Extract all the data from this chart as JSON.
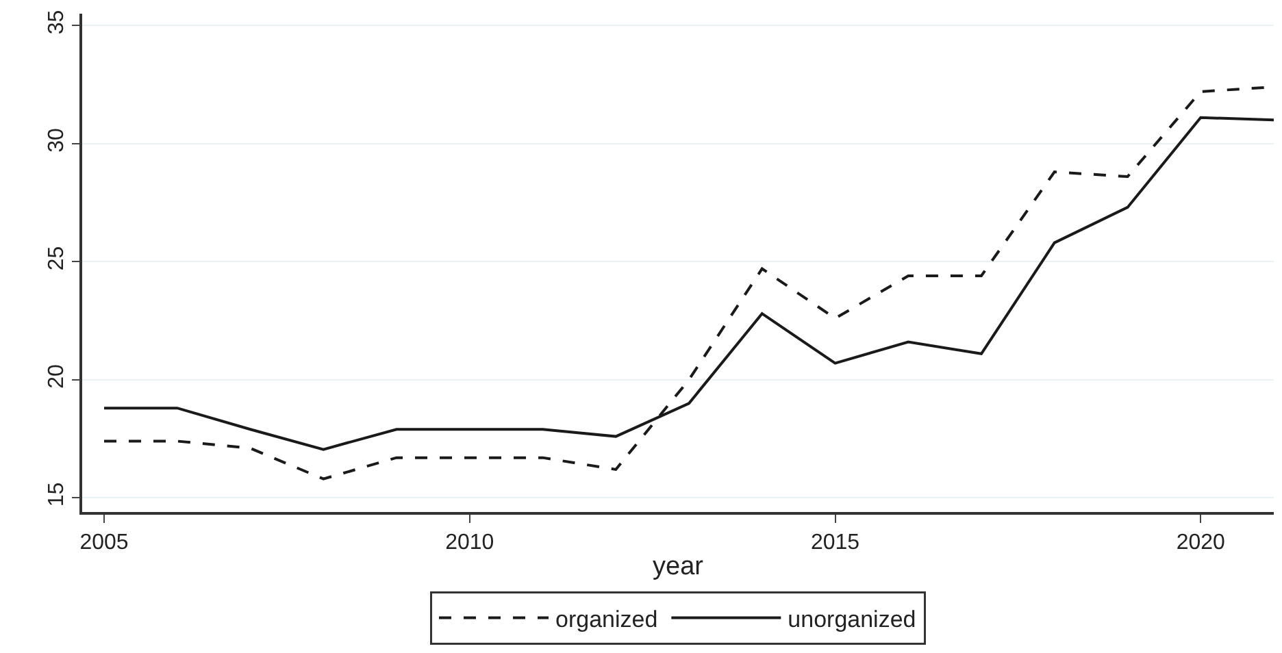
{
  "chart_data": {
    "type": "line",
    "xlabel": "year",
    "x": [
      2005,
      2006,
      2007,
      2008,
      2009,
      2010,
      2011,
      2012,
      2013,
      2014,
      2015,
      2016,
      2017,
      2018,
      2019,
      2020,
      2021
    ],
    "series": [
      {
        "name": "organized",
        "color": "#1a1a1a",
        "line_style": "dashed",
        "values": [
          17.4,
          17.4,
          17.1,
          15.8,
          16.7,
          16.7,
          16.7,
          16.2,
          20.0,
          24.7,
          22.6,
          24.4,
          24.4,
          28.8,
          28.6,
          32.2,
          32.4
        ]
      },
      {
        "name": "unorganized",
        "color": "#1a1a1a",
        "line_style": "solid",
        "values": [
          18.8,
          18.8,
          17.9,
          17.05,
          17.9,
          17.9,
          17.9,
          17.6,
          19.0,
          22.8,
          20.7,
          21.6,
          21.1,
          25.8,
          27.3,
          31.1,
          31.0
        ]
      }
    ],
    "xlim": [
      2004.7,
      2021
    ],
    "xticks": [
      2005,
      2010,
      2015,
      2020
    ],
    "ylim": [
      14.4,
      35.5
    ],
    "yticks": [
      15,
      20,
      25,
      30,
      35
    ],
    "grid": "y",
    "legend": "bottom",
    "marker": "none"
  }
}
